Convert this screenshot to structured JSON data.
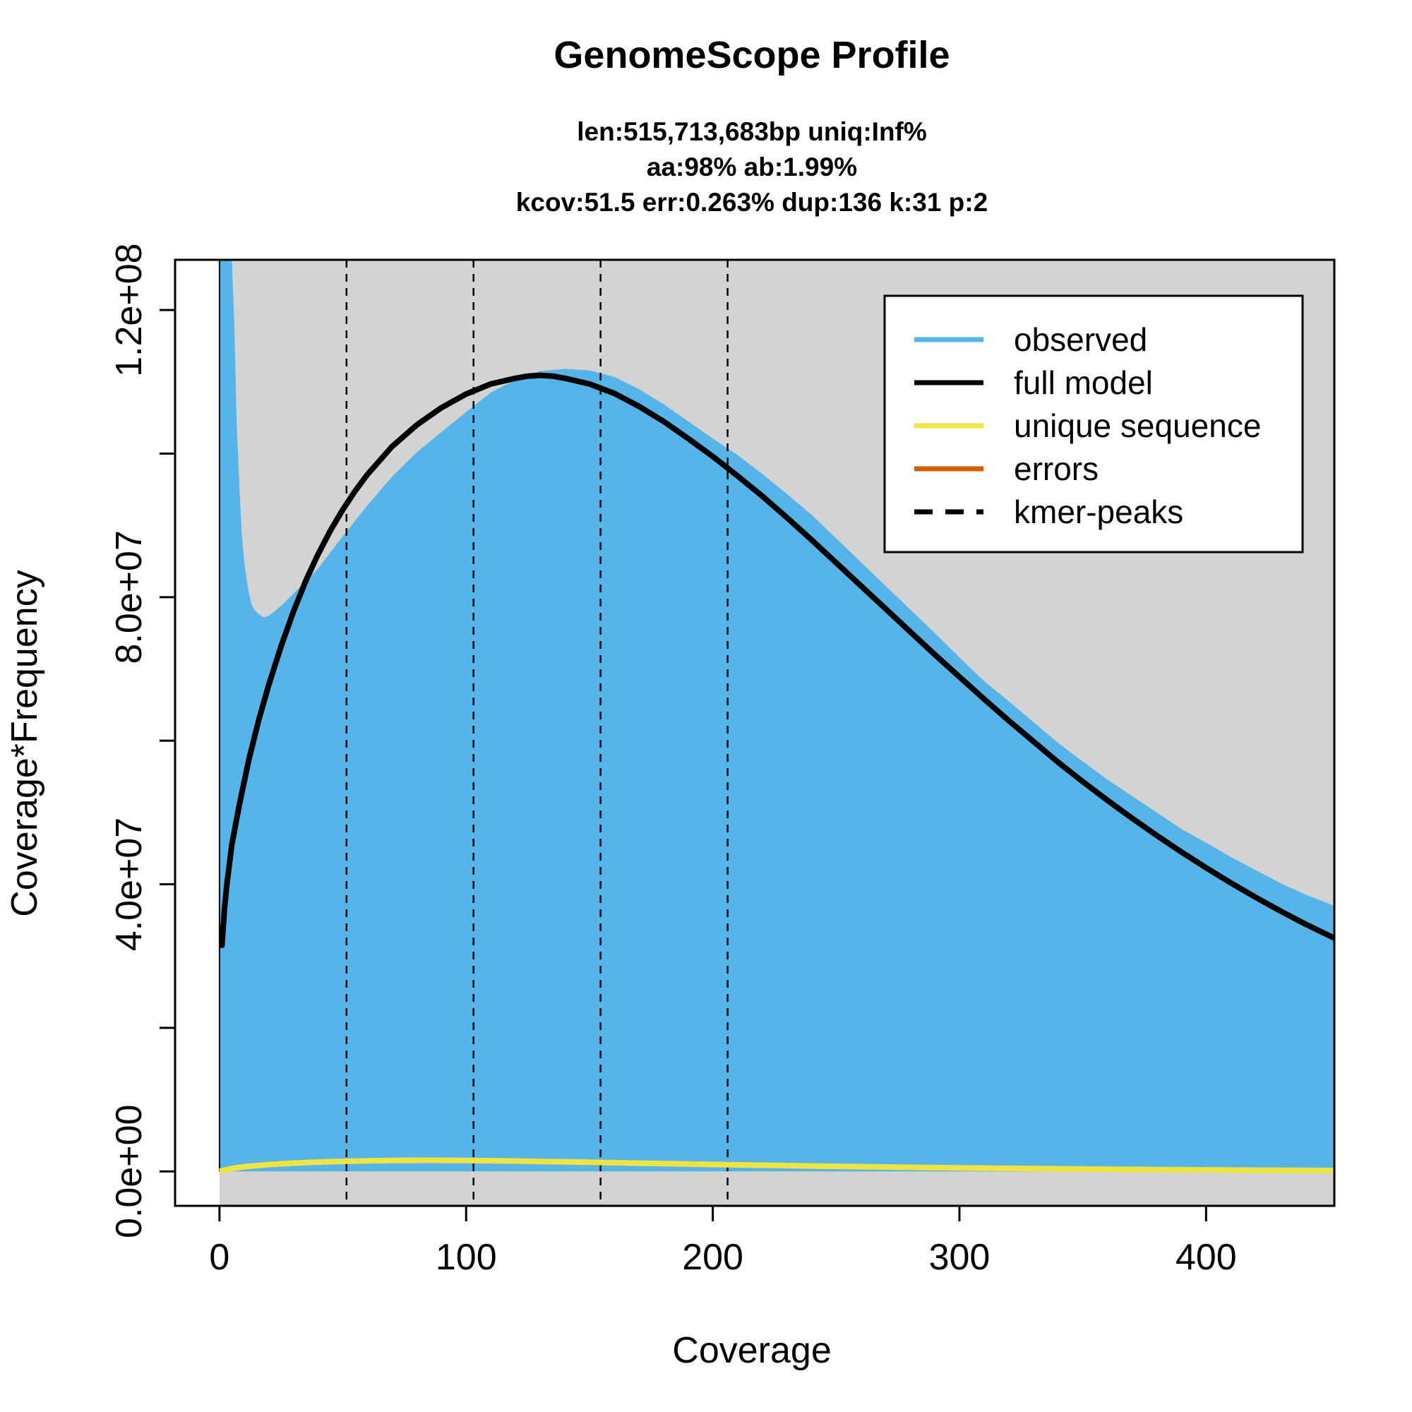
{
  "chart_data": {
    "type": "area",
    "title": "GenomeScope Profile",
    "subtitle_lines": [
      "len:515,713,683bp uniq:Inf%",
      "aa:98% ab:1.99%",
      "kcov:51.5 err:0.263%  dup:136  k:31 p:2"
    ],
    "xlabel": "Coverage",
    "ylabel": "Coverage*Frequency",
    "xlim": [
      -18,
      452
    ],
    "ylim": [
      -4800000,
      127000000
    ],
    "x_ticks": [
      0,
      100,
      200,
      300,
      400
    ],
    "x_tick_labels": [
      "0",
      "100",
      "200",
      "300",
      "400"
    ],
    "y_ticks": [
      0,
      20000000,
      40000000,
      60000000,
      80000000,
      100000000,
      120000000
    ],
    "y_tick_labels": [
      "0.0e+00",
      "",
      "4.0e+07",
      "",
      "8.0e+07",
      "",
      "1.2e+08"
    ],
    "background_color": "#d3d3d3",
    "legend": {
      "position": "top-right",
      "entries": [
        {
          "label": "observed",
          "color": "#56b4e9",
          "style": "solid"
        },
        {
          "label": "full model",
          "color": "#000000",
          "style": "solid"
        },
        {
          "label": "unique sequence",
          "color": "#f0e442",
          "style": "solid"
        },
        {
          "label": "errors",
          "color": "#d55e00",
          "style": "solid"
        },
        {
          "label": "kmer-peaks",
          "color": "#000000",
          "style": "dashed"
        }
      ]
    },
    "kmer_peaks": [
      51.5,
      103,
      154.5,
      206
    ],
    "series": [
      {
        "name": "observed",
        "color": "#56b4e9",
        "x": [
          0,
          5,
          6,
          7,
          8,
          9,
          10,
          11,
          12,
          13,
          14,
          16,
          18,
          20,
          25,
          30,
          40,
          50,
          60,
          70,
          80,
          90,
          100,
          110,
          120,
          130,
          140,
          150,
          160,
          170,
          180,
          190,
          200,
          210,
          220,
          230,
          240,
          250,
          260,
          270,
          280,
          290,
          300,
          310,
          320,
          330,
          340,
          350,
          360,
          370,
          380,
          390,
          400,
          410,
          420,
          430,
          440,
          452
        ],
        "y": [
          127000000,
          127000000,
          118000000,
          104000000,
          96000000,
          89000000,
          85000000,
          82500000,
          80500000,
          79000000,
          78300000,
          77600000,
          77200000,
          77400000,
          78800000,
          80500000,
          84000000,
          88500000,
          92800000,
          96800000,
          100200000,
          103000000,
          105800000,
          108500000,
          110300000,
          111500000,
          111800000,
          111600000,
          110700000,
          109000000,
          106900000,
          104500000,
          102100000,
          99800000,
          97200000,
          94400000,
          91500000,
          88200000,
          84900000,
          81600000,
          78300000,
          75000000,
          71600000,
          68300000,
          65500000,
          62600000,
          59700000,
          57100000,
          54600000,
          52300000,
          50000000,
          47700000,
          45800000,
          43800000,
          42000000,
          40200000,
          38600000,
          37000000
        ]
      },
      {
        "name": "full model",
        "color": "#000000",
        "x": [
          1,
          2,
          3,
          5,
          8,
          12,
          16,
          20,
          25,
          30,
          35,
          40,
          45,
          50,
          55,
          60,
          70,
          80,
          90,
          100,
          110,
          120,
          125,
          130,
          135,
          140,
          150,
          160,
          170,
          180,
          190,
          200,
          210,
          220,
          230,
          240,
          250,
          260,
          270,
          280,
          290,
          300,
          310,
          320,
          330,
          340,
          350,
          360,
          370,
          380,
          390,
          400,
          410,
          420,
          430,
          440,
          452
        ],
        "y": [
          31500000,
          36500000,
          40000000,
          45500000,
          51000000,
          57500000,
          63000000,
          67800000,
          73200000,
          78000000,
          82300000,
          86000000,
          89300000,
          92200000,
          94800000,
          97100000,
          101000000,
          104000000,
          106400000,
          108300000,
          109700000,
          110500000,
          110800000,
          110900000,
          110800000,
          110500000,
          109700000,
          108400000,
          106600000,
          104500000,
          102100000,
          99600000,
          96900000,
          94100000,
          91100000,
          88000000,
          84800000,
          81600000,
          78400000,
          75200000,
          72000000,
          68900000,
          65800000,
          62800000,
          59900000,
          57000000,
          54300000,
          51700000,
          49200000,
          46800000,
          44500000,
          42300000,
          40200000,
          38200000,
          36300000,
          34500000,
          32500000
        ]
      },
      {
        "name": "unique sequence",
        "color": "#f0e442",
        "x": [
          0,
          5,
          10,
          20,
          30,
          40,
          50,
          60,
          70,
          80,
          90,
          100,
          120,
          140,
          160,
          180,
          200,
          220,
          250,
          280,
          300,
          320,
          350,
          380,
          400,
          420,
          452
        ],
        "y": [
          0,
          400000,
          650000,
          950000,
          1150000,
          1300000,
          1400000,
          1470000,
          1520000,
          1540000,
          1540000,
          1520000,
          1440000,
          1330000,
          1210000,
          1090000,
          970000,
          860000,
          700000,
          570000,
          490000,
          420000,
          330000,
          250000,
          210000,
          170000,
          120000
        ]
      }
    ]
  }
}
